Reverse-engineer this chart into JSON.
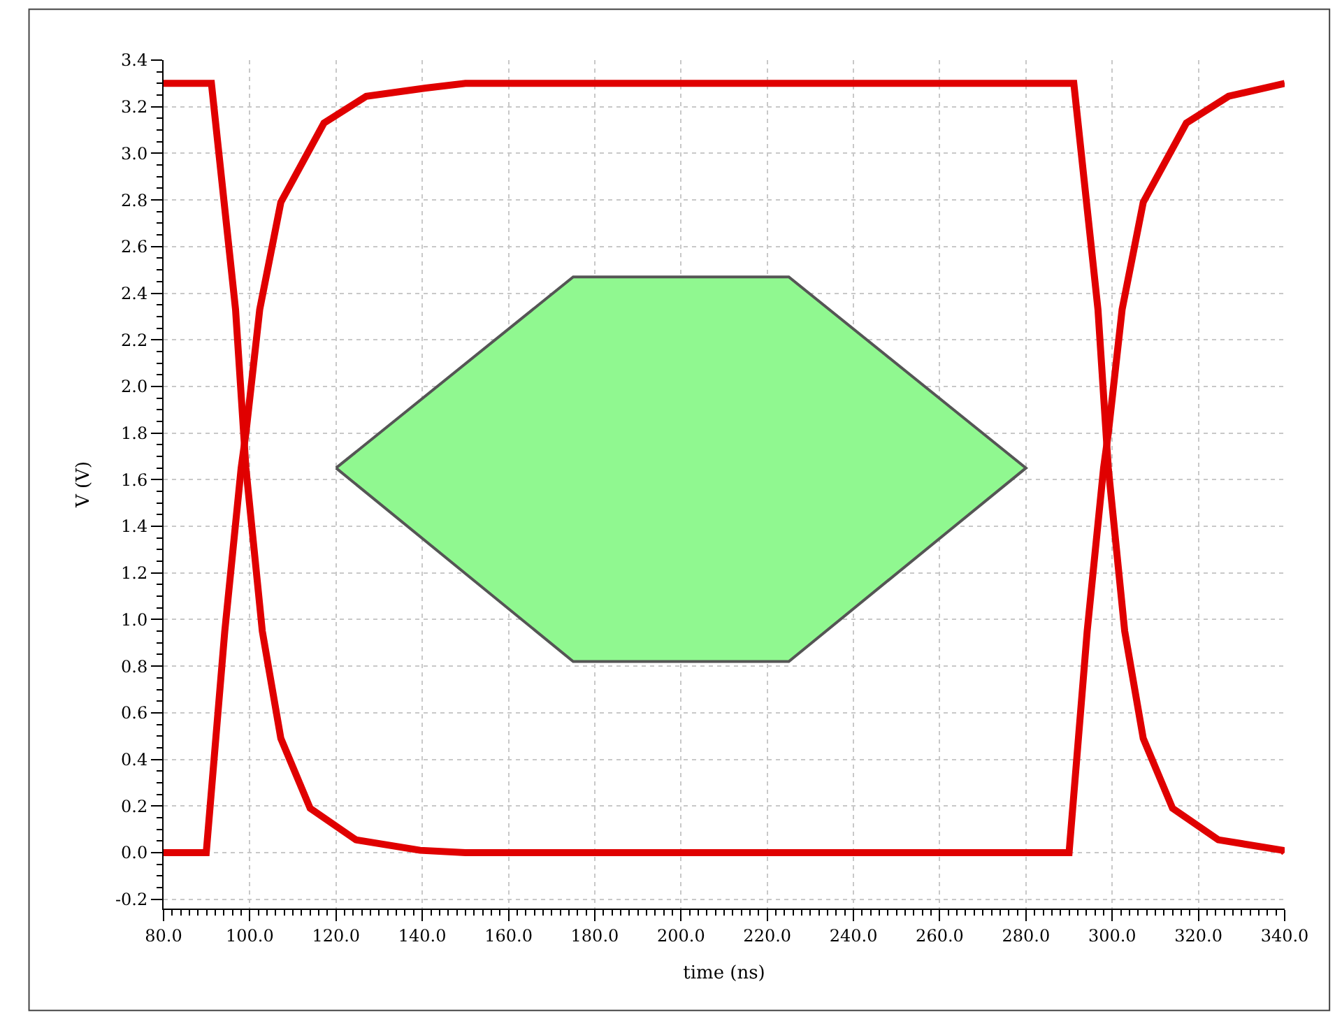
{
  "chart_data": {
    "type": "line",
    "xlabel": "time (ns)",
    "ylabel": "V (V)",
    "xlim": [
      80,
      340
    ],
    "ylim": [
      -0.24,
      3.4
    ],
    "xticks": [
      {
        "value": 80,
        "label": "80.0"
      },
      {
        "value": 100,
        "label": "100.0"
      },
      {
        "value": 120,
        "label": "120.0"
      },
      {
        "value": 140,
        "label": "140.0"
      },
      {
        "value": 160,
        "label": "160.0"
      },
      {
        "value": 180,
        "label": "180.0"
      },
      {
        "value": 200,
        "label": "200.0"
      },
      {
        "value": 220,
        "label": "220.0"
      },
      {
        "value": 240,
        "label": "240.0"
      },
      {
        "value": 260,
        "label": "260.0"
      },
      {
        "value": 280,
        "label": "280.0"
      },
      {
        "value": 300,
        "label": "300.0"
      },
      {
        "value": 320,
        "label": "320.0"
      },
      {
        "value": 340,
        "label": "340.0"
      }
    ],
    "yticks": [
      {
        "value": -0.2,
        "label": "-0.2"
      },
      {
        "value": 0,
        "label": "0.0"
      },
      {
        "value": 0.2,
        "label": "0.2"
      },
      {
        "value": 0.4,
        "label": "0.4"
      },
      {
        "value": 0.6,
        "label": "0.6"
      },
      {
        "value": 0.8,
        "label": "0.8"
      },
      {
        "value": 1.0,
        "label": "1.0"
      },
      {
        "value": 1.2,
        "label": "1.2"
      },
      {
        "value": 1.4,
        "label": "1.4"
      },
      {
        "value": 1.6,
        "label": "1.6"
      },
      {
        "value": 1.8,
        "label": "1.8"
      },
      {
        "value": 2.0,
        "label": "2.0"
      },
      {
        "value": 2.2,
        "label": "2.2"
      },
      {
        "value": 2.4,
        "label": "2.4"
      },
      {
        "value": 2.6,
        "label": "2.6"
      },
      {
        "value": 2.8,
        "label": "2.8"
      },
      {
        "value": 3.0,
        "label": "3.0"
      },
      {
        "value": 3.2,
        "label": "3.2"
      },
      {
        "value": 3.4,
        "label": "3.4"
      }
    ],
    "grid": true,
    "marker": "none",
    "line_style": "solid",
    "series": [
      {
        "color": "#e00000",
        "x": [
          80,
          91.1,
          96.7,
          99.1,
          102.9,
          107.2,
          114,
          124.6,
          139.5,
          150,
          290,
          294.2,
          298,
          299.1,
          302.3,
          307.2,
          317.2,
          327,
          340
        ],
        "values": [
          3.3,
          3.3,
          2.33,
          1.65,
          0.95,
          0.49,
          0.19,
          0.055,
          0.01,
          0,
          0,
          0.95,
          1.65,
          1.8,
          2.33,
          2.79,
          3.13,
          3.245,
          3.3
        ]
      },
      {
        "color": "#e00000",
        "x": [
          80,
          89.9,
          94.2,
          98,
          99.1,
          102.3,
          107.2,
          117.2,
          127,
          140.8,
          150,
          291.1,
          296.7,
          299.1,
          302.9,
          307.2,
          314,
          324.6,
          339.5,
          340
        ],
        "values": [
          0,
          0,
          0.95,
          1.65,
          1.8,
          2.33,
          2.79,
          3.13,
          3.245,
          3.28,
          3.3,
          3.3,
          2.33,
          1.65,
          0.95,
          0.49,
          0.19,
          0.055,
          0.01,
          0
        ]
      },
      {
        "type": "area",
        "color": "#90f890",
        "x": [
          120,
          175,
          225,
          280,
          225,
          175,
          120
        ],
        "values": [
          1.65,
          2.47,
          2.47,
          1.65,
          0.82,
          0.82,
          1.65
        ]
      }
    ]
  }
}
